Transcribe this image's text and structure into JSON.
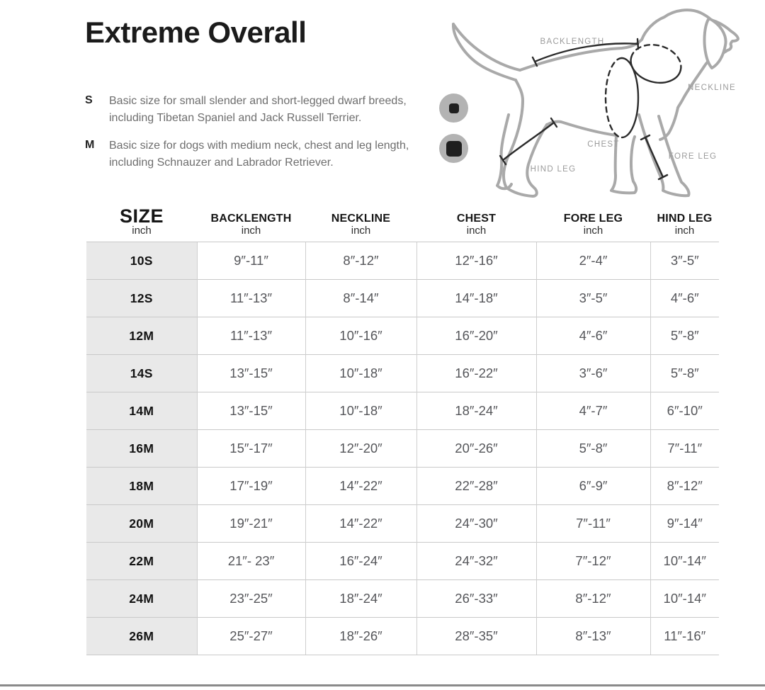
{
  "page": {
    "title": "Extreme Overall"
  },
  "legend": {
    "items": [
      {
        "key": "S",
        "lines": [
          "Basic size for small slender and short-legged dwarf breeds,",
          "including Tibetan Spaniel and Jack Russell Terrier."
        ]
      },
      {
        "key": "M",
        "lines": [
          "Basic size for dogs with medium neck, chest and leg length,",
          "including Schnauzer and Labrador Retriever."
        ]
      }
    ]
  },
  "diagram": {
    "labels": {
      "backlength": "BACKLENGTH",
      "neckline": "NECKLINE",
      "chest": "CHEST",
      "foreleg": "FORE LEG",
      "hindleg": "HIND LEG"
    }
  },
  "table": {
    "columns": [
      {
        "label": "SIZE",
        "unit": "inch"
      },
      {
        "label": "BACKLENGTH",
        "unit": "inch"
      },
      {
        "label": "NECKLINE",
        "unit": "inch"
      },
      {
        "label": "CHEST",
        "unit": "inch"
      },
      {
        "label": "FORE LEG",
        "unit": "inch"
      },
      {
        "label": "HIND LEG",
        "unit": "inch"
      }
    ],
    "rows": [
      {
        "size": "10S",
        "backlength": "9″-11″",
        "neckline": "8″-12″",
        "chest": "12″-16″",
        "foreleg": "2″-4″",
        "hindleg": "3″-5″"
      },
      {
        "size": "12S",
        "backlength": "11″-13″",
        "neckline": "8″-14″",
        "chest": "14″-18″",
        "foreleg": "3″-5″",
        "hindleg": "4″-6″"
      },
      {
        "size": "12M",
        "backlength": "11″-13″",
        "neckline": "10″-16″",
        "chest": "16″-20″",
        "foreleg": "4″-6″",
        "hindleg": "5″-8″"
      },
      {
        "size": "14S",
        "backlength": "13″-15″",
        "neckline": "10″-18″",
        "chest": "16″-22″",
        "foreleg": "3″-6″",
        "hindleg": "5″-8″"
      },
      {
        "size": "14M",
        "backlength": "13″-15″",
        "neckline": "10″-18″",
        "chest": "18″-24″",
        "foreleg": "4″-7″",
        "hindleg": "6″-10″"
      },
      {
        "size": "16M",
        "backlength": "15″-17″",
        "neckline": "12″-20″",
        "chest": "20″-26″",
        "foreleg": "5″-8″",
        "hindleg": "7″-11″"
      },
      {
        "size": "18M",
        "backlength": "17″-19″",
        "neckline": "14″-22″",
        "chest": "22″-28″",
        "foreleg": "6″-9″",
        "hindleg": "8″-12″"
      },
      {
        "size": "20M",
        "backlength": "19″-21″",
        "neckline": "14″-22″",
        "chest": "24″-30″",
        "foreleg": "7″-11″",
        "hindleg": "9″-14″"
      },
      {
        "size": "22M",
        "backlength": "21″- 23″",
        "neckline": "16″-24″",
        "chest": "24″-32″",
        "foreleg": "7″-12″",
        "hindleg": "10″-14″"
      },
      {
        "size": "24M",
        "backlength": "23″-25″",
        "neckline": "18″-24″",
        "chest": "26″-33″",
        "foreleg": "8″-12″",
        "hindleg": "10″-14″"
      },
      {
        "size": "26M",
        "backlength": "25″-27″",
        "neckline": "18″-26″",
        "chest": "28″-35″",
        "foreleg": "8″-13″",
        "hindleg": "11″-16″"
      }
    ]
  },
  "colors": {
    "size_column_bg": "#e9e9e9",
    "table_border": "#c9c9c9",
    "value_text": "#55565a",
    "illustration_gray": "#a9a9a9",
    "diagram_label_gray": "#9b9b9b",
    "marker_circle_gray": "#b3b3b3",
    "marker_square_black": "#1f1f1f"
  }
}
